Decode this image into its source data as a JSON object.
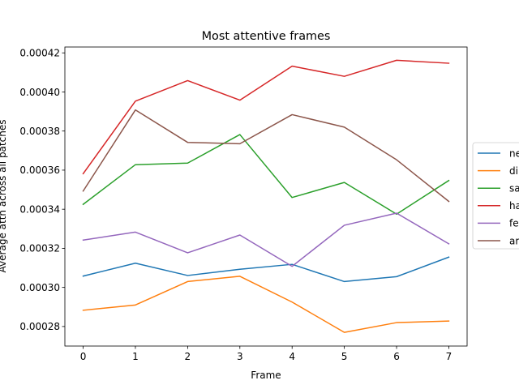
{
  "chart_data": {
    "type": "line",
    "title": "Most attentive frames",
    "xlabel": "Frame",
    "ylabel": "Average attn across all patches",
    "x": [
      0,
      1,
      2,
      3,
      4,
      5,
      6,
      7
    ],
    "xticks": [
      "0",
      "1",
      "2",
      "3",
      "4",
      "5",
      "6",
      "7"
    ],
    "yticks": [
      0.00028,
      0.0003,
      0.00032,
      0.00034,
      0.00036,
      0.00038,
      0.0004,
      0.00042
    ],
    "ytick_labels": [
      "0.00028",
      "0.00030",
      "0.00032",
      "0.00034",
      "0.00036",
      "0.00038",
      "0.00040",
      "0.00042"
    ],
    "xlim": [
      -0.35,
      7.35
    ],
    "ylim": [
      0.00027,
      0.000423
    ],
    "grid": false,
    "legend_placement": "right, outside",
    "series": [
      {
        "name": "ne",
        "color": "#1f77b4",
        "values": [
          0.0003058,
          0.0003124,
          0.0003061,
          0.0003093,
          0.0003118,
          0.000303,
          0.0003055,
          0.0003155
        ]
      },
      {
        "name": "di",
        "color": "#ff7f0e",
        "values": [
          0.0002883,
          0.000291,
          0.000303,
          0.0003057,
          0.0002925,
          0.000277,
          0.000282,
          0.0002828
        ]
      },
      {
        "name": "sa",
        "color": "#2ca02c",
        "values": [
          0.0003425,
          0.0003628,
          0.0003636,
          0.0003782,
          0.000346,
          0.0003537,
          0.0003375,
          0.0003547
        ]
      },
      {
        "name": "ha",
        "color": "#d62728",
        "values": [
          0.0003582,
          0.0003953,
          0.0004058,
          0.0003958,
          0.0004132,
          0.000408,
          0.0004162,
          0.0004147
        ]
      },
      {
        "name": "fe",
        "color": "#9467bd",
        "values": [
          0.0003242,
          0.0003283,
          0.0003177,
          0.0003268,
          0.0003108,
          0.0003318,
          0.000338,
          0.0003223
        ]
      },
      {
        "name": "ar",
        "color": "#8c564b",
        "values": [
          0.0003493,
          0.0003908,
          0.0003742,
          0.0003735,
          0.0003884,
          0.000382,
          0.0003653,
          0.000344
        ]
      }
    ]
  }
}
